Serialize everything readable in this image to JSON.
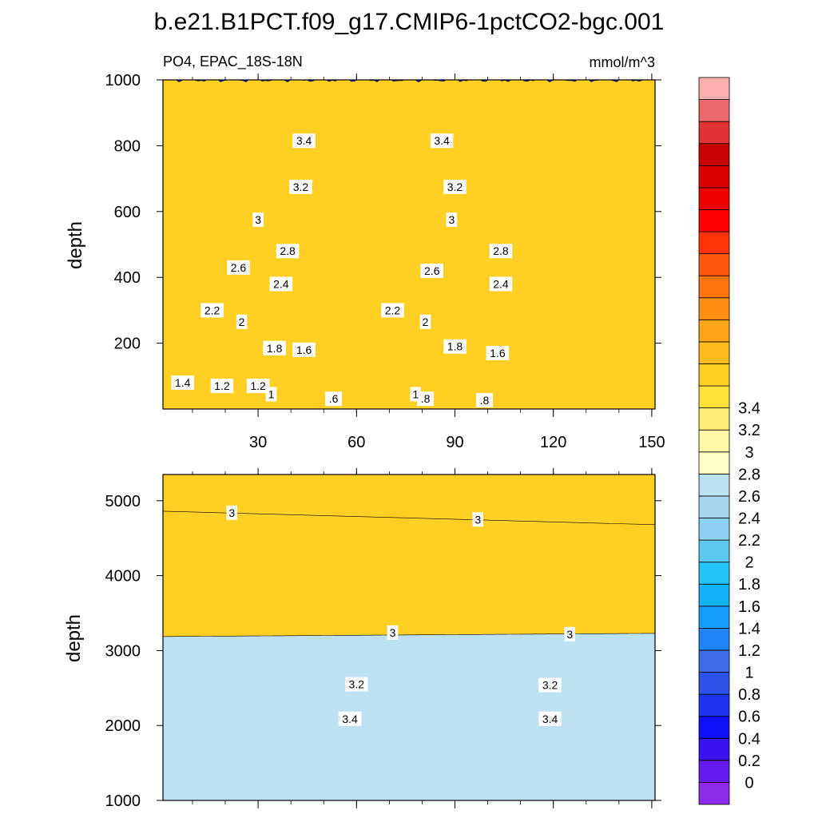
{
  "title": "b.e21.B1PCT.f09_g17.CMIP6-1pctCO2-bgc.001",
  "subtitle_left": "PO4, EPAC_18S-18N",
  "subtitle_right": "mmol/m^3",
  "chart_data": [
    {
      "type": "heatmap",
      "panel": "upper",
      "ylabel": "depth",
      "xlim": [
        1,
        151
      ],
      "ylim": [
        1000,
        0
      ],
      "x_ticks": [
        "30",
        "60",
        "90",
        "120",
        "150"
      ],
      "y_ticks": [
        "200",
        "400",
        "600",
        "800",
        "1000"
      ],
      "level_depths": [
        {
          "level": 0.6,
          "depth": 10
        },
        {
          "level": 0.8,
          "depth": 25
        },
        {
          "level": 1.0,
          "depth": 55
        },
        {
          "level": 1.2,
          "depth": 105
        },
        {
          "level": 1.4,
          "depth": 145
        },
        {
          "level": 1.6,
          "depth": 185
        },
        {
          "level": 1.8,
          "depth": 205
        },
        {
          "level": 2.0,
          "depth": 265
        },
        {
          "level": 2.2,
          "depth": 310
        },
        {
          "level": 2.4,
          "depth": 360
        },
        {
          "level": 2.6,
          "depth": 425
        },
        {
          "level": 2.8,
          "depth": 475
        },
        {
          "level": 3.0,
          "depth": 570
        },
        {
          "level": 3.2,
          "depth": 695
        },
        {
          "level": 3.4,
          "depth": 795
        },
        {
          "level": 3.6,
          "depth": 1000
        }
      ],
      "contour_labels": [
        {
          "text": ".8",
          "x": 99,
          "y": 27
        },
        {
          "text": ".6",
          "x": 53,
          "y": 31
        },
        {
          "text": ".8",
          "x": 81,
          "y": 31
        },
        {
          "text": "1",
          "x": 34,
          "y": 45
        },
        {
          "text": "1",
          "x": 78,
          "y": 45
        },
        {
          "text": "1.2",
          "x": 19,
          "y": 70
        },
        {
          "text": "1.2",
          "x": 30,
          "y": 70
        },
        {
          "text": "1.4",
          "x": 7,
          "y": 80
        },
        {
          "text": "1.6",
          "x": 103,
          "y": 170
        },
        {
          "text": "1.6",
          "x": 44,
          "y": 180
        },
        {
          "text": "1.8",
          "x": 35,
          "y": 185
        },
        {
          "text": "1.8",
          "x": 90,
          "y": 190
        },
        {
          "text": "2",
          "x": 25,
          "y": 265
        },
        {
          "text": "2",
          "x": 81,
          "y": 265
        },
        {
          "text": "2.2",
          "x": 16,
          "y": 300
        },
        {
          "text": "2.2",
          "x": 71,
          "y": 300
        },
        {
          "text": "2.4",
          "x": 37,
          "y": 380
        },
        {
          "text": "2.4",
          "x": 104,
          "y": 380
        },
        {
          "text": "2.6",
          "x": 24,
          "y": 430
        },
        {
          "text": "2.6",
          "x": 83,
          "y": 420
        },
        {
          "text": "2.8",
          "x": 39,
          "y": 480
        },
        {
          "text": "2.8",
          "x": 104,
          "y": 480
        },
        {
          "text": "3",
          "x": 30,
          "y": 575
        },
        {
          "text": "3",
          "x": 89,
          "y": 575
        },
        {
          "text": "3.2",
          "x": 43,
          "y": 675
        },
        {
          "text": "3.2",
          "x": 90,
          "y": 675
        },
        {
          "text": "3.4",
          "x": 44,
          "y": 815
        },
        {
          "text": "3.4",
          "x": 86,
          "y": 815
        }
      ]
    },
    {
      "type": "heatmap",
      "panel": "lower",
      "ylabel": "depth",
      "xlim": [
        1,
        151
      ],
      "ylim": [
        5350,
        1000
      ],
      "x_ticks": [
        "30",
        "60",
        "90",
        "120",
        "150"
      ],
      "y_ticks": [
        "1000",
        "2000",
        "3000",
        "4000",
        "5000"
      ],
      "level_depths": [
        {
          "level": 3.6,
          "depth": 1850
        },
        {
          "level": 3.4,
          "depth": 2075
        },
        {
          "level": 3.2,
          "depth": 2310
        },
        {
          "level": 3.0,
          "depth": 2560
        },
        {
          "level": 2.8,
          "depth": 3230
        }
      ],
      "contour_labels": [
        {
          "text": "3.4",
          "x": 58,
          "y": 2090
        },
        {
          "text": "3.4",
          "x": 119,
          "y": 2090
        },
        {
          "text": "3.2",
          "x": 60,
          "y": 2550
        },
        {
          "text": "3.2",
          "x": 119,
          "y": 2540
        },
        {
          "text": "3",
          "x": 71,
          "y": 3240
        },
        {
          "text": "3",
          "x": 125,
          "y": 3220
        },
        {
          "text": "3",
          "x": 22,
          "y": 4840
        },
        {
          "text": "3",
          "x": 97,
          "y": 4750
        }
      ]
    }
  ],
  "colorbar": {
    "colors": [
      "#8e2bea",
      "#6619f0",
      "#3a12f2",
      "#1010f6",
      "#1d36ef",
      "#2c52e8",
      "#3e6ce4",
      "#1f83f2",
      "#139ef9",
      "#13b2f7",
      "#22c3f6",
      "#5ec7ef",
      "#8ccfee",
      "#a7d7ef",
      "#bee1f2",
      "#ffffc6",
      "#fff8a5",
      "#ffef79",
      "#ffe13a",
      "#ffcf23",
      "#ffbb1c",
      "#ffa517",
      "#ff8f12",
      "#ff740f",
      "#ff570b",
      "#ff3208",
      "#ff0000",
      "#ef0000",
      "#dc0000",
      "#c80000",
      "#e03232",
      "#e86a6a",
      "#ffafaf"
    ],
    "labels": [
      "0",
      "0.2",
      "0.4",
      "0.6",
      "0.8",
      "1",
      "1.2",
      "1.4",
      "1.6",
      "1.8",
      "2",
      "2.2",
      "2.4",
      "2.6",
      "2.8",
      "3",
      "3.2",
      "3.4"
    ]
  }
}
